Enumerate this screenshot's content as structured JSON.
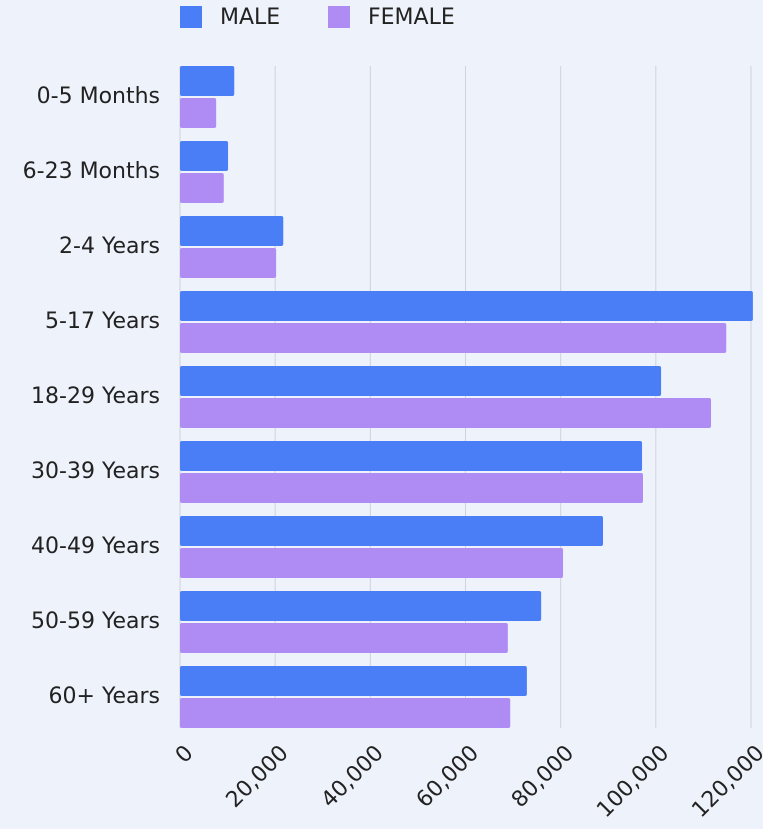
{
  "chart_data": {
    "type": "hbar",
    "categories": [
      "0-5 Months",
      "6-23 Months",
      "2-4 Years",
      "5-17 Years",
      "18-29 Years",
      "30-39 Years",
      "40-49 Years",
      "50-59 Years",
      "60+ Years"
    ],
    "series": [
      {
        "name": "MALE",
        "color": "#4a7ef6",
        "values": [
          11400,
          10100,
          21700,
          120400,
          101100,
          97100,
          88900,
          75900,
          72900
        ]
      },
      {
        "name": "FEMALE",
        "color": "#ae8cf4",
        "values": [
          7600,
          9200,
          20200,
          114800,
          111600,
          97300,
          80500,
          68900,
          69400
        ]
      }
    ],
    "xlim": [
      0,
      120000
    ],
    "xticks": [
      0,
      {
        "value": 20000,
        "label": "20,000"
      },
      {
        "value": 40000,
        "label": "40,000"
      },
      {
        "value": 60000,
        "label": "60,000"
      },
      {
        "value": 80000,
        "label": "80,000"
      },
      {
        "value": 100000,
        "label": "100,000"
      },
      {
        "value": 120000,
        "label": "120,000"
      }
    ],
    "grid": true,
    "legend": "top"
  }
}
